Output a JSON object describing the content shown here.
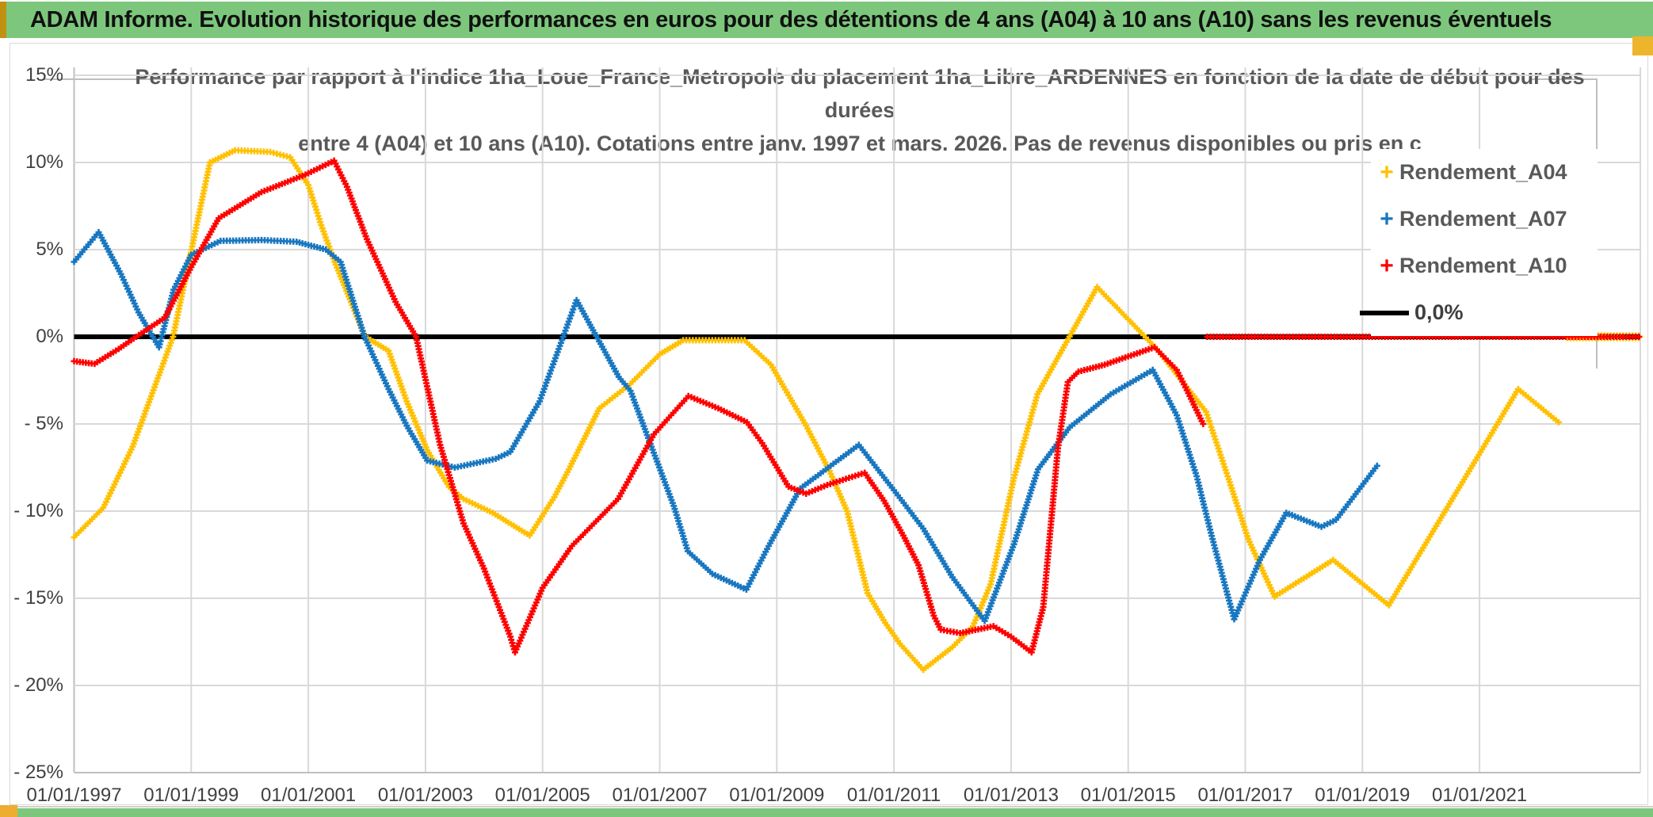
{
  "header": {
    "title": "ADAM Informe. Evolution historique des performances en euros pour des détentions de 4 ans (A04) à 10 ans (A10) sans les revenus éventuels"
  },
  "chart_data": {
    "type": "scatter",
    "title_lines": [
      "Performance par rapport à l'indice 1ha_Loue_France_Metropole  du placement 1ha_Libre_ARDENNES en fonction de la date de début pour des",
      "durées",
      "entre 4 (A04) et 10 ans (A10). Cotations entre janv. 1997 et mars. 2026. Pas de revenus disponibles ou pris en c"
    ],
    "x_axis": {
      "labels": [
        "01/01/1997",
        "01/01/1999",
        "01/01/2001",
        "01/01/2003",
        "01/01/2005",
        "01/01/2007",
        "01/01/2009",
        "01/01/2011",
        "01/01/2013",
        "01/01/2015",
        "01/01/2017",
        "01/01/2019",
        "01/01/2021"
      ],
      "years_between_ticks": 2
    },
    "y_axis": {
      "labels": [
        "15%",
        "10%",
        "5%",
        "0%",
        "- 5%",
        "- 10%",
        "- 15%",
        "- 20%",
        "- 25%"
      ],
      "values": [
        15,
        10,
        5,
        0,
        -5,
        -10,
        -15,
        -20,
        -25
      ],
      "ylim": [
        -25,
        15
      ]
    },
    "grid": true,
    "legend_position": "right-inside",
    "zero_line": {
      "label": "0,0%",
      "color": "#000000",
      "value": 0
    },
    "series": [
      {
        "name": "Rendement_A04",
        "color": "#FFC000",
        "marker": "plus",
        "points": [
          [
            0,
            -11.5
          ],
          [
            0.5,
            -9.8
          ],
          [
            1,
            -6.3
          ],
          [
            1.69,
            0
          ],
          [
            2.32,
            10
          ],
          [
            2.75,
            10.7
          ],
          [
            3.35,
            10.6
          ],
          [
            3.69,
            10.3
          ],
          [
            4,
            8.7
          ],
          [
            4.22,
            6.4
          ],
          [
            4.45,
            4.3
          ],
          [
            4.97,
            0
          ],
          [
            5.37,
            -0.8
          ],
          [
            5.68,
            -3.7
          ],
          [
            6.03,
            -6.5
          ],
          [
            6.4,
            -8.6
          ],
          [
            6.65,
            -9.3
          ],
          [
            7.15,
            -10.1
          ],
          [
            7.78,
            -11.4
          ],
          [
            8.2,
            -9.2
          ],
          [
            8.45,
            -7.6
          ],
          [
            8.97,
            -4.1
          ],
          [
            9.5,
            -2.7
          ],
          [
            10,
            -1
          ],
          [
            10.4,
            -0.2
          ],
          [
            11.45,
            -0.2
          ],
          [
            11.9,
            -1.6
          ],
          [
            12.5,
            -5.1
          ],
          [
            12.9,
            -7.7
          ],
          [
            13.2,
            -10
          ],
          [
            13.55,
            -14.7
          ],
          [
            13.85,
            -16.4
          ],
          [
            14.1,
            -17.6
          ],
          [
            14.5,
            -19.1
          ],
          [
            15,
            -17.8
          ],
          [
            15.35,
            -16.6
          ],
          [
            15.65,
            -14.2
          ],
          [
            16.05,
            -8.1
          ],
          [
            16.45,
            -3.3
          ],
          [
            17.47,
            2.85
          ],
          [
            18.49,
            -0.7
          ],
          [
            19.33,
            -4.3
          ],
          [
            19.7,
            -8
          ],
          [
            20.05,
            -11.6
          ],
          [
            20.5,
            -14.9
          ],
          [
            21.5,
            -12.8
          ],
          [
            22.45,
            -15.4
          ],
          [
            24.66,
            -3
          ],
          [
            25.35,
            -4.9
          ]
        ],
        "flat_zero_from": 25.5
      },
      {
        "name": "Rendement_A07",
        "color": "#1877C0",
        "marker": "plus",
        "points": [
          [
            0,
            4.3
          ],
          [
            0.42,
            6
          ],
          [
            0.8,
            3.6
          ],
          [
            1.1,
            1.4
          ],
          [
            1.45,
            -0.6
          ],
          [
            1.7,
            2.7
          ],
          [
            2,
            4.7
          ],
          [
            2.5,
            5.5
          ],
          [
            3.2,
            5.55
          ],
          [
            3.8,
            5.45
          ],
          [
            4.3,
            5
          ],
          [
            4.55,
            4.3
          ],
          [
            4.96,
            0
          ],
          [
            5.37,
            -3
          ],
          [
            5.68,
            -5.1
          ],
          [
            6.03,
            -7.1
          ],
          [
            6.5,
            -7.5
          ],
          [
            7.2,
            -7
          ],
          [
            7.45,
            -6.6
          ],
          [
            7.95,
            -3.7
          ],
          [
            8.2,
            -1.4
          ],
          [
            8.58,
            2.1
          ],
          [
            9.3,
            -2.3
          ],
          [
            9.5,
            -3.1
          ],
          [
            10.05,
            -8
          ],
          [
            10.24,
            -9.7
          ],
          [
            10.48,
            -12.3
          ],
          [
            10.9,
            -13.6
          ],
          [
            11.48,
            -14.5
          ],
          [
            11.86,
            -12
          ],
          [
            12.4,
            -8.7
          ],
          [
            13.4,
            -6.2
          ],
          [
            14,
            -8.8
          ],
          [
            14.5,
            -11
          ],
          [
            15,
            -13.8
          ],
          [
            15.55,
            -16.3
          ],
          [
            16.05,
            -11.9
          ],
          [
            16.46,
            -7.6
          ],
          [
            17,
            -5.2
          ],
          [
            17.7,
            -3.3
          ],
          [
            18.42,
            -1.9
          ],
          [
            18.83,
            -4.5
          ],
          [
            19.17,
            -8
          ],
          [
            19.44,
            -11.6
          ],
          [
            19.81,
            -16.2
          ],
          [
            20.25,
            -12.8
          ],
          [
            20.7,
            -10.1
          ],
          [
            21.3,
            -10.9
          ],
          [
            21.55,
            -10.5
          ],
          [
            22.25,
            -7.4
          ]
        ],
        "flat_zero_from": null
      },
      {
        "name": "Rendement_A10",
        "color": "#FF0000",
        "marker": "plus",
        "points": [
          [
            0,
            -1.4
          ],
          [
            0.35,
            -1.55
          ],
          [
            0.76,
            -0.7
          ],
          [
            1.06,
            0
          ],
          [
            1.55,
            1.1
          ],
          [
            2,
            4
          ],
          [
            2.47,
            6.8
          ],
          [
            3.2,
            8.3
          ],
          [
            3.95,
            9.3
          ],
          [
            4.44,
            10.1
          ],
          [
            4.66,
            8.6
          ],
          [
            5,
            5.6
          ],
          [
            5.49,
            2
          ],
          [
            5.84,
            0
          ],
          [
            6.25,
            -6.2
          ],
          [
            6.65,
            -10.7
          ],
          [
            7,
            -13.3
          ],
          [
            7.45,
            -17.2
          ],
          [
            7.53,
            -18.1
          ],
          [
            8,
            -14.4
          ],
          [
            8.5,
            -12
          ],
          [
            9.29,
            -9.3
          ],
          [
            9.9,
            -5.6
          ],
          [
            10.49,
            -3.4
          ],
          [
            11,
            -4.1
          ],
          [
            11.49,
            -4.9
          ],
          [
            11.75,
            -6.1
          ],
          [
            12.2,
            -8.6
          ],
          [
            12.5,
            -9
          ],
          [
            12.86,
            -8.5
          ],
          [
            13.5,
            -7.8
          ],
          [
            13.83,
            -9.4
          ],
          [
            14.16,
            -11.4
          ],
          [
            14.42,
            -13.1
          ],
          [
            14.68,
            -16
          ],
          [
            14.8,
            -16.8
          ],
          [
            15.13,
            -17
          ],
          [
            15.7,
            -16.6
          ],
          [
            16,
            -17.2
          ],
          [
            16.35,
            -18.1
          ],
          [
            16.55,
            -15.5
          ],
          [
            16.8,
            -6.4
          ],
          [
            16.97,
            -2.6
          ],
          [
            17.15,
            -2
          ],
          [
            17.6,
            -1.6
          ],
          [
            18.45,
            -0.6
          ],
          [
            18.83,
            -1.9
          ],
          [
            19.05,
            -3.4
          ],
          [
            19.28,
            -5
          ]
        ],
        "flat_zero_from": 19.35
      }
    ],
    "legend": [
      {
        "label": "Rendement_A04",
        "color": "#FFC000",
        "marker": "plus"
      },
      {
        "label": "Rendement_A07",
        "color": "#1877C0",
        "marker": "plus"
      },
      {
        "label": "Rendement_A10",
        "color": "#FF0000",
        "marker": "plus"
      },
      {
        "label": "0,0%",
        "color": "#000000",
        "marker": "line"
      }
    ]
  },
  "colors": {
    "header_green": "#7dc77d",
    "gold": "#edad31",
    "grid": "#d9d9d9",
    "axis_text": "#404040",
    "subtitle_text": "#595959"
  }
}
